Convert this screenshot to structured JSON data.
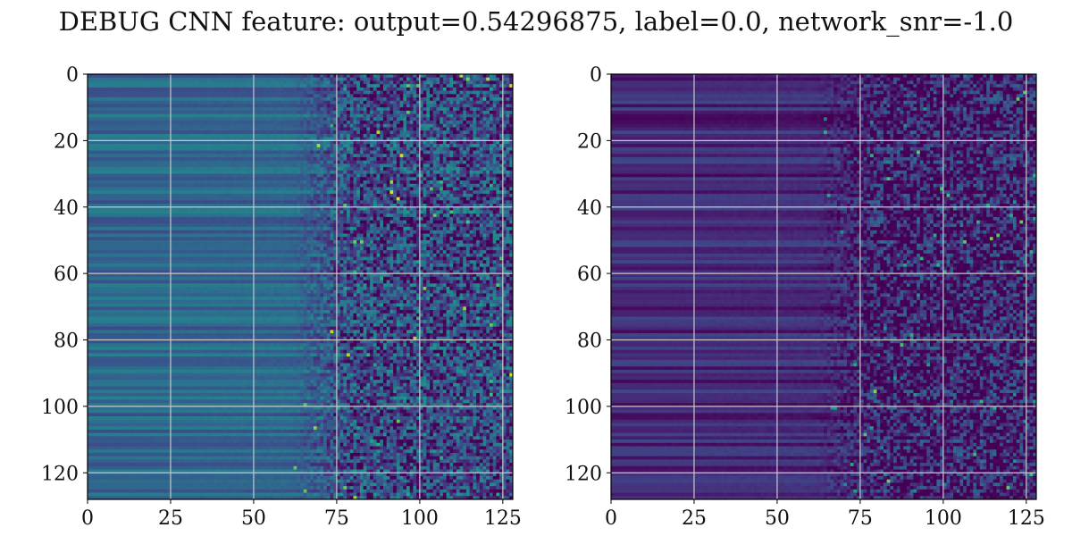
{
  "title": "DEBUG CNN feature: output=0.54296875, label=0.0, network_snr=-1.0",
  "chart_data": [
    {
      "type": "heatmap",
      "colormap": "viridis",
      "rows": 128,
      "cols": 128,
      "xlim": [
        0,
        128
      ],
      "ylim": [
        128,
        0
      ],
      "xticks": [
        0,
        25,
        50,
        75,
        100,
        125
      ],
      "yticks": [
        0,
        20,
        40,
        60,
        80,
        100,
        120
      ],
      "grid": true,
      "grid_color": "#c8c8c8",
      "description_levels": {
        "left_cols_mean": 0.33,
        "right_cols_mean": 0.22,
        "noise_right": 0.28
      }
    },
    {
      "type": "heatmap",
      "colormap": "viridis",
      "rows": 128,
      "cols": 128,
      "xlim": [
        0,
        128
      ],
      "ylim": [
        128,
        0
      ],
      "xticks": [
        0,
        25,
        50,
        75,
        100,
        125
      ],
      "yticks": [
        0,
        20,
        40,
        60,
        80,
        100,
        120
      ],
      "grid": true,
      "grid_color": "#c8c8c8",
      "description_levels": {
        "left_cols_mean": 0.12,
        "right_cols_mean": 0.08,
        "noise_right": 0.26
      }
    }
  ]
}
